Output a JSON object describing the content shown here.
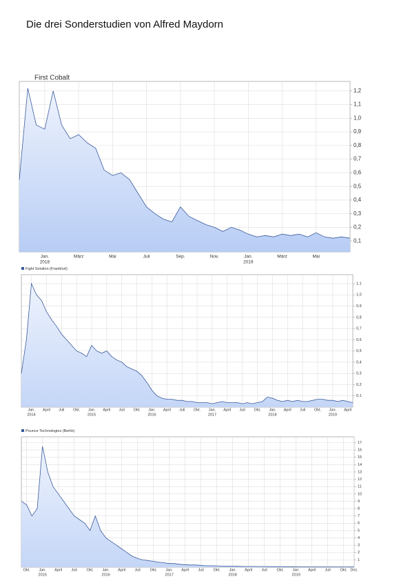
{
  "title": "Die drei Sonderstudien von Alfred Maydorn",
  "chart_data": [
    {
      "type": "area",
      "legend": "title",
      "categories": [
        null,
        null,
        null,
        "Jan.",
        null,
        null,
        null,
        "März",
        null,
        null,
        null,
        "Mai",
        null,
        null,
        null,
        "Juli",
        null,
        null,
        null,
        "Sep.",
        null,
        null,
        null,
        "Nov.",
        null,
        null,
        null,
        "Jan.",
        null,
        null,
        null,
        "März",
        null,
        null,
        null,
        "Mai",
        null,
        null,
        null,
        null
      ],
      "category_years": [
        null,
        null,
        null,
        "2018",
        null,
        null,
        null,
        null,
        null,
        null,
        null,
        null,
        null,
        null,
        null,
        null,
        null,
        null,
        null,
        null,
        null,
        null,
        null,
        null,
        null,
        null,
        null,
        "2019",
        null,
        null,
        null,
        null,
        null,
        null,
        null,
        null,
        null,
        null,
        null,
        null
      ],
      "series": [
        {
          "name": "First Cobalt",
          "color": "#3a5a9c",
          "fill": "#b8cdf5",
          "values": [
            0.55,
            1.22,
            0.95,
            0.92,
            1.2,
            0.95,
            0.85,
            0.88,
            0.82,
            0.78,
            0.62,
            0.58,
            0.6,
            0.55,
            0.45,
            0.35,
            0.3,
            0.26,
            0.24,
            0.35,
            0.28,
            0.25,
            0.22,
            0.2,
            0.17,
            0.2,
            0.18,
            0.15,
            0.13,
            0.14,
            0.13,
            0.15,
            0.14,
            0.15,
            0.13,
            0.16,
            0.13,
            0.12,
            0.13,
            0.12
          ]
        }
      ],
      "ylim": [
        0.02,
        1.27
      ],
      "yticks": [
        {
          "value": 0.1,
          "label": "0,1"
        },
        {
          "value": 0.2,
          "label": "0,2"
        },
        {
          "value": 0.3,
          "label": "0,3"
        },
        {
          "value": 0.4,
          "label": "0,4"
        },
        {
          "value": 0.5,
          "label": "0,5"
        },
        {
          "value": 0.6,
          "label": "0,6"
        },
        {
          "value": 0.7,
          "label": "0,7"
        },
        {
          "value": 0.8,
          "label": "0,8"
        },
        {
          "value": 0.9,
          "label": "0,9"
        },
        {
          "value": 1.0,
          "label": "1,0"
        },
        {
          "value": 1.1,
          "label": "1,1"
        },
        {
          "value": 1.2,
          "label": "1,2"
        }
      ],
      "grid": true
    },
    {
      "type": "area",
      "legend": "above",
      "categories": [
        null,
        null,
        "Jan.",
        null,
        null,
        "April",
        null,
        null,
        "Juli",
        null,
        null,
        "Okt.",
        null,
        null,
        "Jan.",
        null,
        null,
        "April",
        null,
        null,
        "Juli",
        null,
        null,
        "Okt.",
        null,
        null,
        "Jan.",
        null,
        null,
        "April",
        null,
        null,
        "Juli",
        null,
        null,
        "Okt.",
        null,
        null,
        "Jan.",
        null,
        null,
        "April",
        null,
        null,
        "Juli",
        null,
        null,
        "Okt.",
        null,
        null,
        "Jan.",
        null,
        null,
        "April",
        null,
        null,
        "Juli",
        null,
        null,
        "Okt.",
        null,
        null,
        "Jan.",
        null,
        null,
        "April",
        null
      ],
      "category_years": [
        null,
        null,
        "2014",
        null,
        null,
        null,
        null,
        null,
        null,
        null,
        null,
        null,
        null,
        null,
        "2015",
        null,
        null,
        null,
        null,
        null,
        null,
        null,
        null,
        null,
        null,
        null,
        "2016",
        null,
        null,
        null,
        null,
        null,
        null,
        null,
        null,
        null,
        null,
        null,
        "2017",
        null,
        null,
        null,
        null,
        null,
        null,
        null,
        null,
        null,
        null,
        null,
        "2018",
        null,
        null,
        null,
        null,
        null,
        null,
        null,
        null,
        null,
        null,
        null,
        "2019",
        null,
        null,
        null,
        null
      ],
      "series": [
        {
          "name": "Fight Solution (Frankfurt)",
          "color": "#3a5a9c",
          "fill": "#c4d6f7",
          "values": [
            0.3,
            0.6,
            1.1,
            1.0,
            0.95,
            0.85,
            0.78,
            0.72,
            0.65,
            0.6,
            0.55,
            0.5,
            0.48,
            0.45,
            0.55,
            0.5,
            0.48,
            0.5,
            0.45,
            0.42,
            0.4,
            0.36,
            0.34,
            0.32,
            0.28,
            0.22,
            0.15,
            0.1,
            0.08,
            0.07,
            0.07,
            0.06,
            0.06,
            0.05,
            0.05,
            0.04,
            0.04,
            0.04,
            0.03,
            0.04,
            0.05,
            0.04,
            0.04,
            0.04,
            0.03,
            0.04,
            0.03,
            0.04,
            0.05,
            0.09,
            0.08,
            0.06,
            0.05,
            0.06,
            0.05,
            0.06,
            0.05,
            0.05,
            0.06,
            0.07,
            0.07,
            0.06,
            0.06,
            0.05,
            0.06,
            0.05,
            0.04
          ]
        }
      ],
      "ylim": [
        0,
        1.18
      ],
      "yticks": [
        {
          "value": 0.1,
          "label": "0,1"
        },
        {
          "value": 0.2,
          "label": "0,2"
        },
        {
          "value": 0.3,
          "label": "0,3"
        },
        {
          "value": 0.4,
          "label": "0,4"
        },
        {
          "value": 0.5,
          "label": "0,5"
        },
        {
          "value": 0.6,
          "label": "0,6"
        },
        {
          "value": 0.7,
          "label": "0,7"
        },
        {
          "value": 0.8,
          "label": "0,8"
        },
        {
          "value": 0.9,
          "label": "0,9"
        },
        {
          "value": 1.0,
          "label": "1,0"
        },
        {
          "value": 1.1,
          "label": "1,1"
        }
      ],
      "grid": true
    },
    {
      "type": "area",
      "legend": "above",
      "categories": [
        null,
        "Okt.",
        null,
        null,
        "Jan.",
        null,
        null,
        "April",
        null,
        null,
        "Juli",
        null,
        null,
        "Okt.",
        null,
        null,
        "Jan.",
        null,
        null,
        "April",
        null,
        null,
        "Juli",
        null,
        null,
        "Okt.",
        null,
        null,
        "Jan.",
        null,
        null,
        "April",
        null,
        null,
        "Juli",
        null,
        null,
        "Okt.",
        null,
        null,
        "Jan.",
        null,
        null,
        "April",
        null,
        null,
        "Juli",
        null,
        null,
        "Okt.",
        null,
        null,
        "Jan.",
        null,
        null,
        "April",
        null,
        null,
        "Juli",
        null,
        null,
        "Okt.",
        null,
        "Dez."
      ],
      "category_years": [
        null,
        null,
        null,
        null,
        "2015",
        null,
        null,
        null,
        null,
        null,
        null,
        null,
        null,
        null,
        null,
        null,
        "2016",
        null,
        null,
        null,
        null,
        null,
        null,
        null,
        null,
        null,
        null,
        null,
        "2017",
        null,
        null,
        null,
        null,
        null,
        null,
        null,
        null,
        null,
        null,
        null,
        "2018",
        null,
        null,
        null,
        null,
        null,
        null,
        null,
        null,
        null,
        null,
        null,
        "2019",
        null,
        null,
        null,
        null,
        null,
        null,
        null,
        null,
        null,
        null,
        null
      ],
      "series": [
        {
          "name": "Pounce Technologies (Berlin)",
          "color": "#3a5a9c",
          "fill": "#c4d6f7",
          "values": [
            9,
            8.5,
            7,
            8,
            16.5,
            13,
            11,
            10,
            9,
            8,
            7,
            6.5,
            6,
            5,
            7,
            5,
            4,
            3.5,
            3,
            2.5,
            2,
            1.5,
            1.2,
            1,
            0.9,
            0.8,
            0.7,
            0.6,
            0.5,
            0.5,
            0.4,
            0.35,
            0.3,
            0.3,
            0.25,
            0.2,
            0.2,
            0.18,
            0.15,
            0.15,
            0.12,
            0.12,
            0.1,
            0.1,
            0.1,
            0.09,
            0.09,
            0.08,
            0.08,
            0.08,
            0.07,
            0.07,
            0.07,
            0.06,
            0.06,
            0.06,
            0.06,
            0.05,
            0.05,
            0.05,
            0.05,
            0.05,
            0.05,
            0.05
          ]
        }
      ],
      "ylim": [
        0,
        17.8
      ],
      "yticks": [
        1,
        2,
        3,
        4,
        5,
        6,
        7,
        8,
        9,
        10,
        11,
        12,
        13,
        14,
        15,
        16,
        17
      ],
      "grid": true
    }
  ]
}
